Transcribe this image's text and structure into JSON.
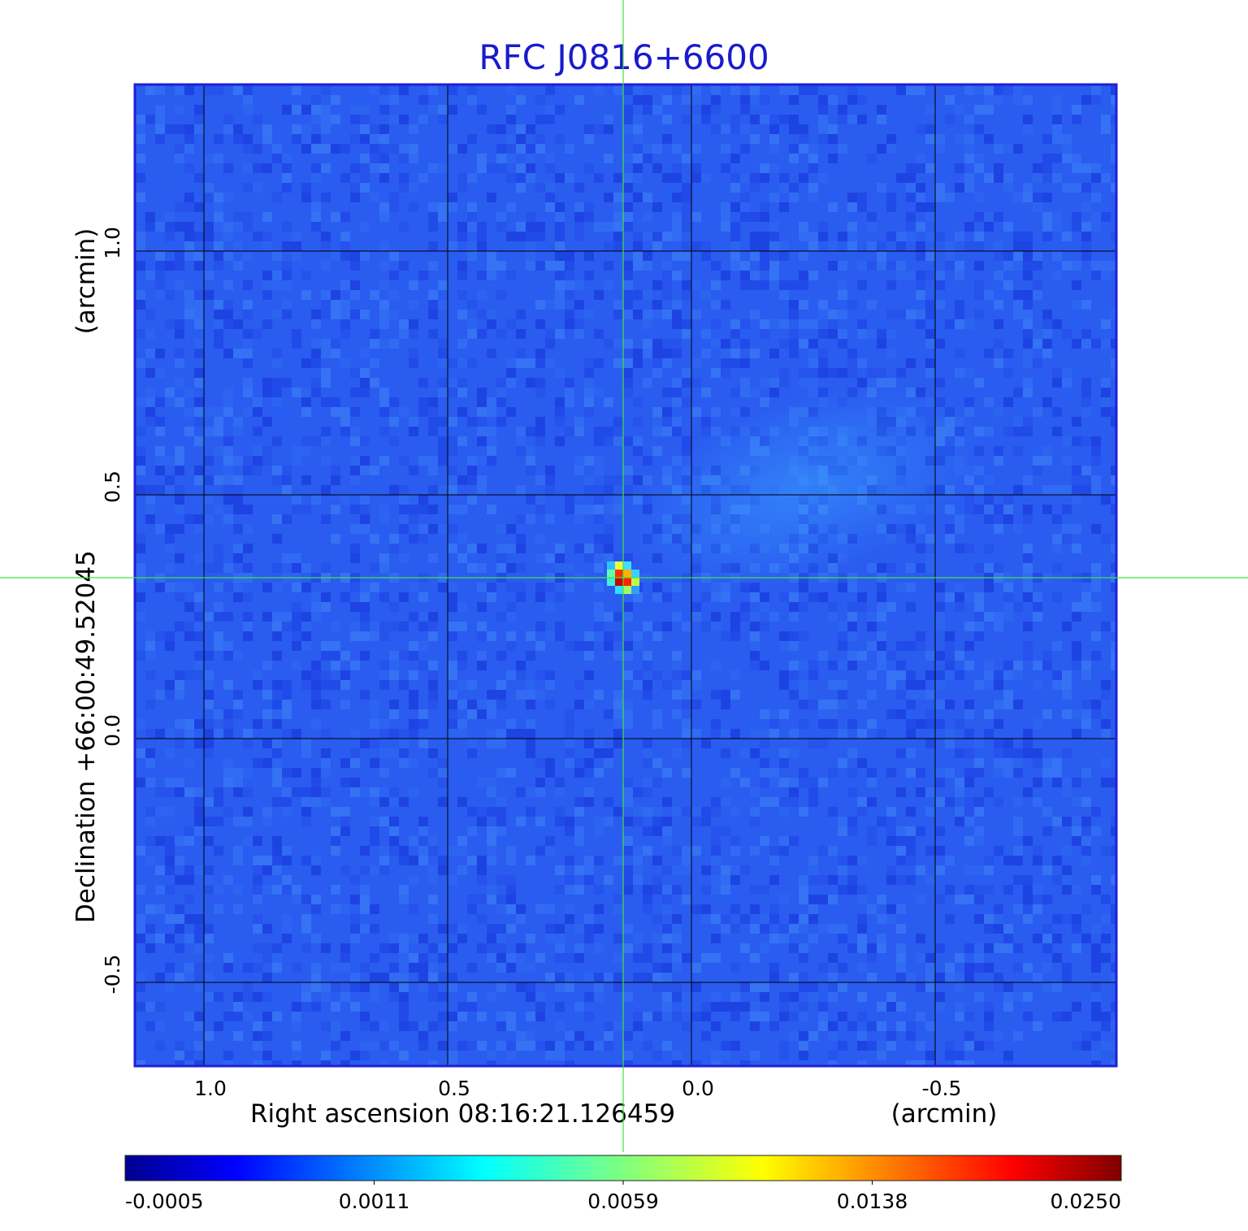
{
  "chart_data": {
    "type": "heatmap",
    "title": "RFC J0816+6600",
    "xlabel": "Right ascension  08:16:21.126459",
    "xunit": "(arcmin)",
    "ylabel": "Declination  +66:00:49.52045",
    "yunit": "(arcmin)",
    "x_ticks": [
      "1.0",
      "0.5",
      "0.0",
      "-0.5"
    ],
    "y_ticks": [
      "1.0",
      "0.5",
      "0.0",
      "-0.5"
    ],
    "x_tick_values": [
      1.0,
      0.5,
      0.0,
      -0.5
    ],
    "y_tick_values": [
      1.0,
      0.5,
      0.0,
      -0.5
    ],
    "xlim": [
      1.14,
      -0.87
    ],
    "ylim": [
      -0.67,
      1.34
    ],
    "grid": true,
    "crosshair": {
      "x": 0.14,
      "y": 0.33
    },
    "source": {
      "x": 0.14,
      "y": 0.33,
      "peak": 0.025
    },
    "colorbar": {
      "ticks": [
        "-0.0005",
        "0.0011",
        "0.0059",
        "0.0138",
        "0.0250"
      ],
      "min": -0.0005,
      "max": 0.025
    },
    "colors": {
      "title": "#1a1acd",
      "frame": "#1f1fd8",
      "crosshair": "#44e044",
      "grid": "#000000",
      "background_map": "#2a5cf0"
    }
  }
}
